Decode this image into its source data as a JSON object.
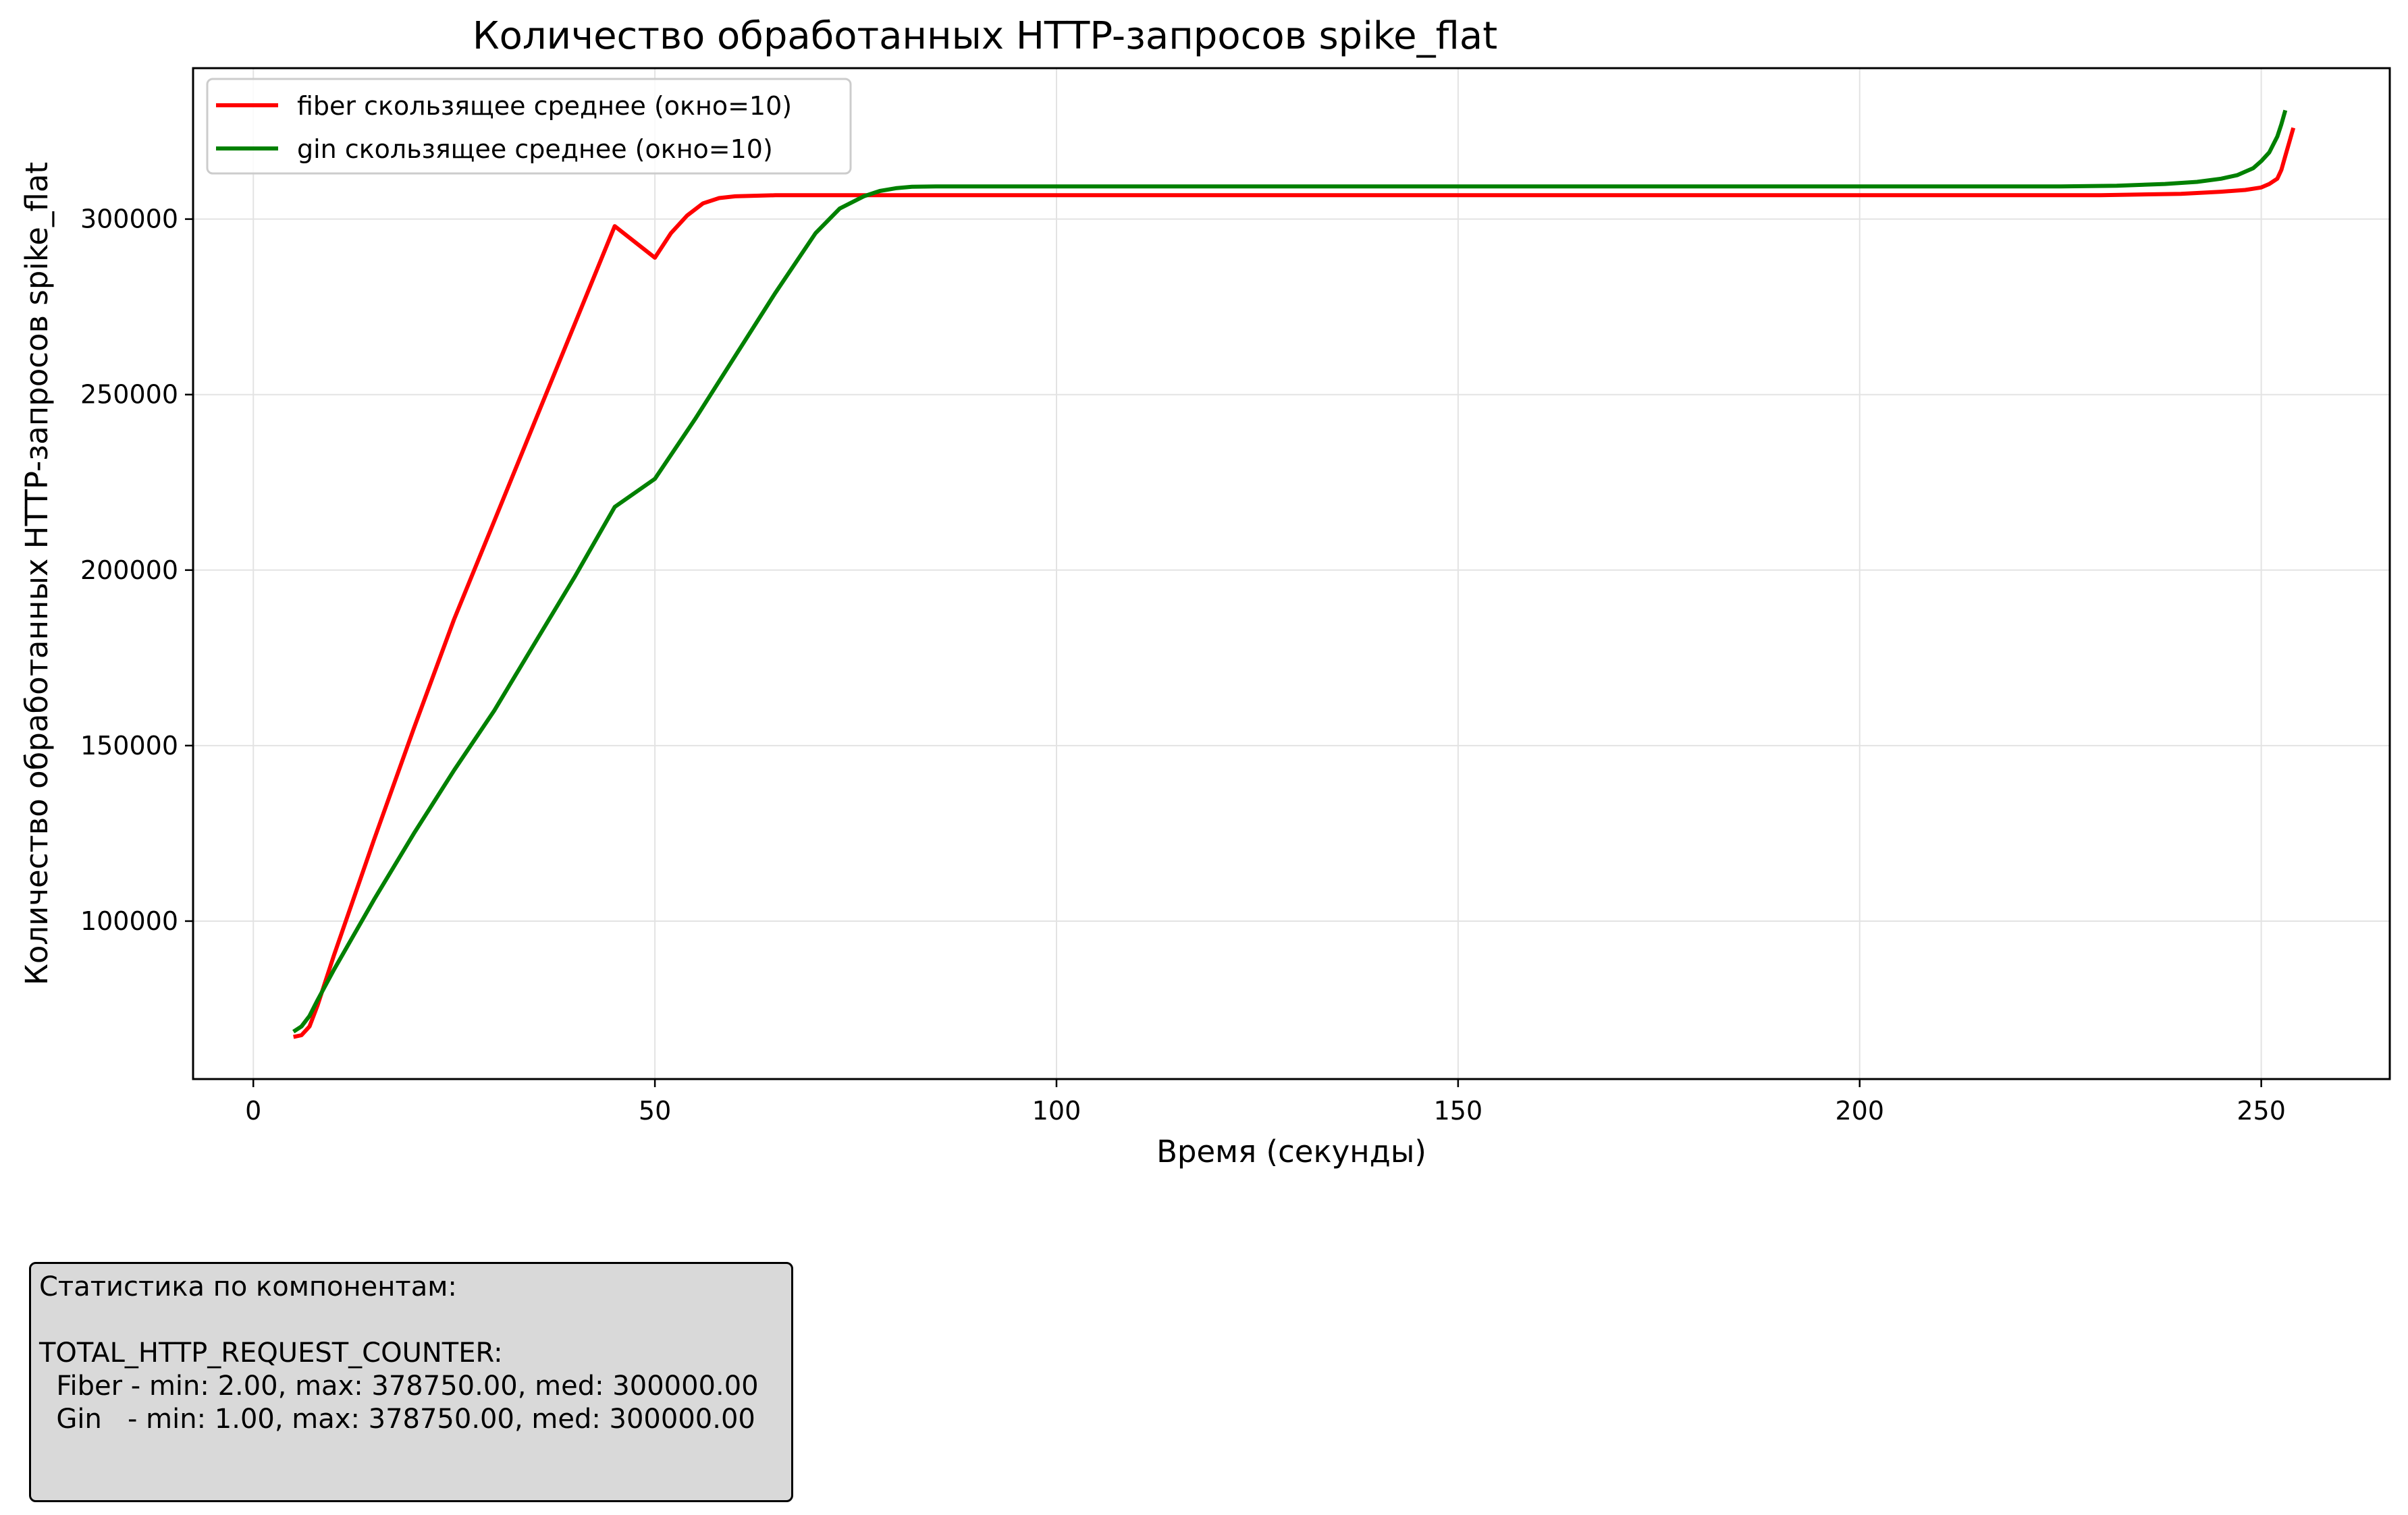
{
  "chart_data": {
    "type": "line",
    "title": "Количество обработанных HTTP-запросов spike_flat",
    "xlabel": "Время (секунды)",
    "ylabel": "Количество обработанных HTTP-запросов spike_flat",
    "xlim": [
      -7.5,
      266
    ],
    "ylim": [
      55000,
      343000
    ],
    "xticks": [
      0,
      50,
      100,
      150,
      200,
      250
    ],
    "yticks": [
      100000,
      150000,
      200000,
      250000,
      300000
    ],
    "grid": true,
    "legend_position": "upper left",
    "series": [
      {
        "name": "fiber скользящее среднее (окно=10)",
        "color": "#ff0000",
        "x": [
          5,
          6,
          7,
          8,
          10,
          15,
          20,
          25,
          30,
          35,
          40,
          45,
          50,
          52,
          54,
          56,
          58,
          60,
          65,
          80,
          100,
          150,
          200,
          230,
          240,
          245,
          248,
          250,
          251,
          252,
          252.5,
          253,
          253.5,
          254
        ],
        "y": [
          67000,
          67500,
          70000,
          76000,
          90000,
          123000,
          155000,
          186000,
          214000,
          242000,
          270000,
          298000,
          289000,
          296000,
          301000,
          304500,
          306000,
          306500,
          306800,
          306800,
          306800,
          306800,
          306800,
          306800,
          307200,
          307800,
          308300,
          309000,
          310000,
          311500,
          314000,
          318000,
          322000,
          326000
        ]
      },
      {
        "name": "gin скользящее среднее (окно=10)",
        "color": "#008000",
        "x": [
          5,
          6,
          7,
          8,
          10,
          15,
          20,
          25,
          30,
          35,
          40,
          45,
          50,
          55,
          60,
          65,
          70,
          73,
          76,
          78,
          80,
          82,
          85,
          100,
          150,
          200,
          225,
          232,
          238,
          242,
          245,
          247,
          249,
          250,
          251,
          252,
          252.5,
          253
        ],
        "y": [
          68500,
          70000,
          73000,
          77500,
          86000,
          106000,
          125000,
          143000,
          160000,
          179000,
          198000,
          218000,
          226000,
          243000,
          261000,
          279000,
          296000,
          303000,
          306500,
          308000,
          308800,
          309200,
          309300,
          309300,
          309300,
          309300,
          309300,
          309500,
          310000,
          310600,
          311500,
          312500,
          314500,
          316500,
          319000,
          323500,
          327000,
          331000
        ]
      }
    ]
  },
  "stats_box": {
    "lines": [
      "Статистика по компонентам:",
      "",
      "TOTAL_HTTP_REQUEST_COUNTER:",
      "  Fiber - min: 2.00, max: 378750.00, med: 300000.00",
      "  Gin   - min: 1.00, max: 378750.00, med: 300000.00"
    ]
  }
}
